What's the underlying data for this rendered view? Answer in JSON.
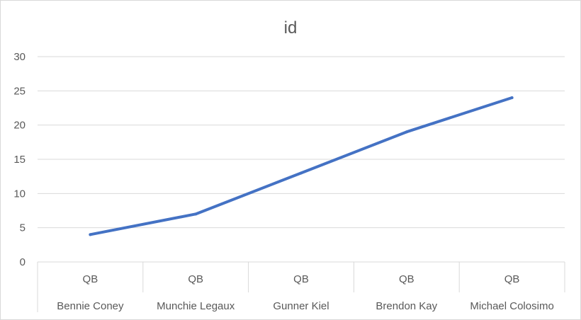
{
  "chart_data": {
    "type": "line",
    "title": "id",
    "xlabel": "",
    "ylabel": "",
    "ylim": [
      0,
      30
    ],
    "yticks": [
      0,
      5,
      10,
      15,
      20,
      25,
      30
    ],
    "grid": true,
    "legend": "none",
    "categories": [
      {
        "group": "QB",
        "name": "Bennie Coney"
      },
      {
        "group": "QB",
        "name": "Munchie Legaux"
      },
      {
        "group": "QB",
        "name": "Gunner Kiel"
      },
      {
        "group": "QB",
        "name": "Brendon Kay"
      },
      {
        "group": "QB",
        "name": "Michael Colosimo"
      }
    ],
    "series": [
      {
        "values": [
          4,
          7,
          13,
          19,
          24
        ],
        "color": "#4472c4"
      }
    ]
  }
}
